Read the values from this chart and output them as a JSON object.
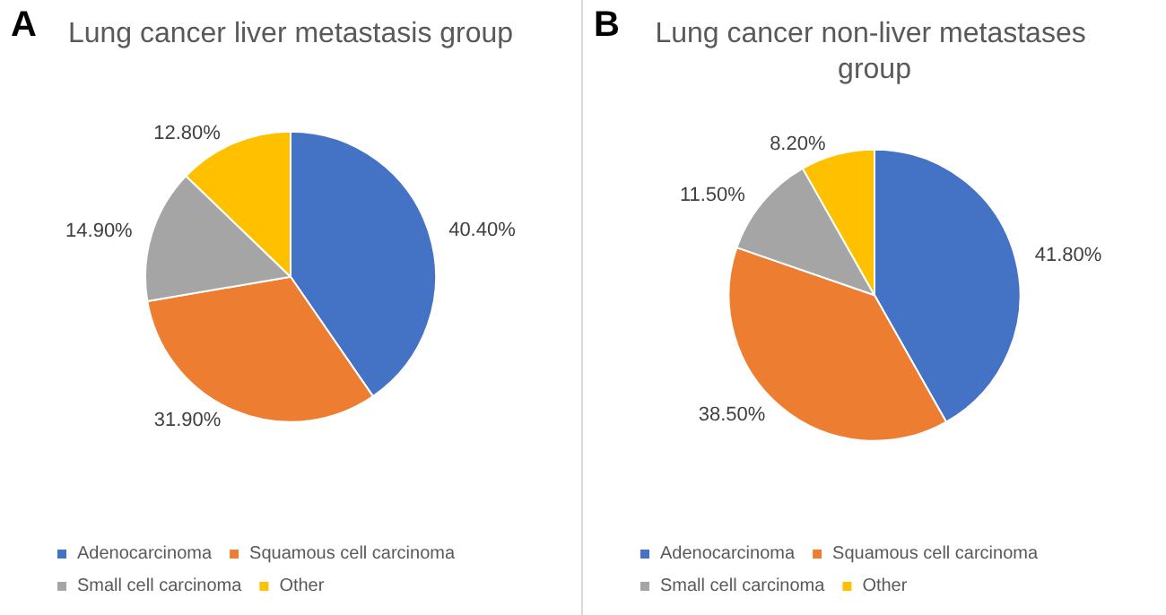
{
  "chart_data": [
    {
      "type": "pie",
      "title": "Lung cancer liver metastasis group",
      "annotations": [
        "A"
      ],
      "categories": [
        "Adenocarcinoma",
        "Squamous cell carcinoma",
        "Small cell carcinoma",
        "Other"
      ],
      "values": [
        40.4,
        31.9,
        14.9,
        12.8
      ],
      "colors": [
        "#4472c4",
        "#ed7d31",
        "#a5a5a5",
        "#ffc000"
      ],
      "value_labels": [
        "40.40%",
        "31.90%",
        "14.90%",
        "12.80%"
      ],
      "legend": "bottom"
    },
    {
      "type": "pie",
      "title": "Lung cancer non-liver metastases group",
      "annotations": [
        "B"
      ],
      "categories": [
        "Adenocarcinoma",
        "Squamous cell carcinoma",
        "Small cell carcinoma",
        "Other"
      ],
      "values": [
        41.8,
        38.5,
        11.5,
        8.2
      ],
      "colors": [
        "#4472c4",
        "#ed7d31",
        "#a5a5a5",
        "#ffc000"
      ],
      "value_labels": [
        "41.80%",
        "38.50%",
        "11.50%",
        "8.20%"
      ],
      "legend": "bottom"
    }
  ]
}
